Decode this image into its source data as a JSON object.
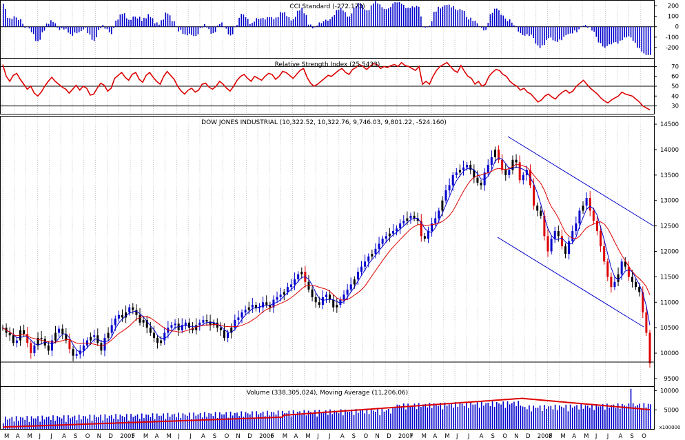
{
  "colors": {
    "up": "#0000cc",
    "down": "#dd0000",
    "neutral": "#000000",
    "ma_slow": "#dd0000",
    "ma_fast": "#0000cc",
    "rsi": "#dd0000",
    "cci": "#0000cc",
    "volume": "#0000cc",
    "grid": "#aaaaaa"
  },
  "chart_data": [
    {
      "type": "bar",
      "title": "CCI Standard (-272.173)",
      "ylim": [
        -300,
        250
      ],
      "yticks": [
        200,
        100,
        0,
        -100,
        -200
      ],
      "tick_labels": [
        "200",
        "100",
        "0",
        "-100",
        "-200"
      ],
      "grid": "vertical",
      "legend": "none"
    },
    {
      "type": "line",
      "title": "Relative Strength Index (25.5433)",
      "ylim": [
        22,
        78
      ],
      "yticks": [
        70,
        60,
        50,
        40,
        30
      ],
      "tick_labels": [
        "70",
        "60",
        "50",
        "40",
        "30"
      ],
      "reference_lines": [
        70,
        50,
        30
      ],
      "values": [
        72,
        60,
        55,
        61,
        63,
        57,
        52,
        47,
        50,
        43,
        40,
        44,
        50,
        55,
        59,
        55,
        52,
        49,
        47,
        43,
        47,
        51,
        46,
        50,
        48,
        41,
        42,
        48,
        53,
        51,
        45,
        48,
        58,
        61,
        64,
        59,
        56,
        62,
        64,
        57,
        54,
        61,
        64,
        59,
        55,
        52,
        60,
        65,
        61,
        57,
        50,
        45,
        42,
        46,
        48,
        44,
        46,
        52,
        53,
        49,
        47,
        50,
        55,
        52,
        48,
        45,
        50,
        56,
        60,
        62,
        58,
        55,
        60,
        58,
        56,
        60,
        63,
        62,
        57,
        60,
        65,
        64,
        61,
        58,
        62,
        66,
        68,
        59,
        53,
        50,
        52,
        55,
        58,
        61,
        60,
        63,
        66,
        68,
        64,
        62,
        67,
        69,
        72,
        70,
        67,
        70,
        73,
        72,
        68,
        70,
        69,
        71,
        72,
        70,
        74,
        71,
        70,
        68,
        66,
        70,
        52,
        55,
        52,
        60,
        66,
        70,
        72,
        74,
        70,
        66,
        64,
        71,
        65,
        60,
        58,
        52,
        55,
        50,
        52,
        60,
        64,
        67,
        66,
        62,
        60,
        55,
        52,
        50,
        46,
        48,
        44,
        42,
        38,
        34,
        36,
        40,
        42,
        39,
        37,
        41,
        44,
        46,
        43,
        45,
        50,
        53,
        56,
        52,
        48,
        45,
        42,
        38,
        35,
        33,
        36,
        38,
        40,
        44,
        42,
        41,
        40,
        37,
        34,
        30,
        28,
        26
      ],
      "grid": "vertical",
      "legend": "none"
    },
    {
      "type": "candlestick",
      "title": "DOW JONES INDUSTRIAL (10,322.52, 10,322.76, 9,746.03, 9,801.22, -524.160)",
      "ylim": [
        9350,
        14650
      ],
      "yticks": [
        14500,
        14000,
        13500,
        13000,
        12500,
        12000,
        11500,
        11000,
        10500,
        10000,
        9500
      ],
      "tick_labels": [
        "14500",
        "14000",
        "13500",
        "13000",
        "12500",
        "12000",
        "11500",
        "11000",
        "10500",
        "10000",
        "9500"
      ],
      "series": [
        {
          "name": "",
          "role": "price",
          "values": [
            10500,
            10400,
            10350,
            10200,
            10250,
            10450,
            10380,
            10200,
            10000,
            10150,
            10300,
            10280,
            10150,
            10050,
            10250,
            10400,
            10480,
            10380,
            10250,
            10080,
            9950,
            9980,
            10050,
            10150,
            10250,
            10320,
            10350,
            10200,
            10050,
            10300,
            10400,
            10550,
            10680,
            10750,
            10700,
            10800,
            10900,
            10850,
            10750,
            10600,
            10650,
            10500,
            10400,
            10300,
            10200,
            10250,
            10400,
            10500,
            10550,
            10580,
            10450,
            10550,
            10600,
            10500,
            10450,
            10550,
            10600,
            10650,
            10620,
            10550,
            10600,
            10500,
            10450,
            10300,
            10400,
            10500,
            10650,
            10700,
            10800,
            10850,
            10900,
            10950,
            10880,
            10900,
            11000,
            10950,
            10900,
            11050,
            11100,
            11150,
            11200,
            11300,
            11350,
            11450,
            11550,
            11600,
            11400,
            11250,
            11100,
            11000,
            10950,
            11100,
            11150,
            11050,
            10900,
            10950,
            11050,
            11150,
            11250,
            11350,
            11450,
            11600,
            11700,
            11800,
            11900,
            11950,
            12050,
            12150,
            12250,
            12300,
            12350,
            12400,
            12450,
            12550,
            12600,
            12650,
            12700,
            12650,
            12600,
            12300,
            12250,
            12400,
            12550,
            12650,
            12800,
            13000,
            13200,
            13300,
            13500,
            13550,
            13600,
            13650,
            13700,
            13600,
            13450,
            13350,
            13300,
            13550,
            13700,
            13850,
            14000,
            13800,
            13600,
            13500,
            13600,
            13800,
            13750,
            13400,
            13500,
            13600,
            13300,
            12900,
            12800,
            12700,
            12300,
            12000,
            12250,
            12400,
            12300,
            12100,
            11950,
            12200,
            12400,
            12550,
            12800,
            12900,
            13050,
            12800,
            12600,
            12400,
            12100,
            11800,
            11500,
            11300,
            11400,
            11550,
            11800,
            11700,
            11500,
            11400,
            11300,
            11200,
            10800,
            10400,
            9801
          ]
        },
        {
          "name": "",
          "role": "moving-average-fast",
          "values": []
        },
        {
          "name": "",
          "role": "moving-average-slow",
          "values": []
        }
      ],
      "annotations": [
        "descending channel upper line",
        "descending channel lower line",
        "support line near 9750"
      ],
      "grid": "vertical",
      "legend": "none"
    },
    {
      "type": "bar",
      "title": "Volume (338,305,024), Moving Average (11,206.06)",
      "ylim": [
        0,
        11000
      ],
      "yticks": [
        10000,
        5000
      ],
      "tick_labels": [
        "10000",
        "5000"
      ],
      "unit_label": "x100000",
      "grid": "vertical",
      "legend": "none"
    }
  ],
  "x_axis": {
    "labels": [
      "M",
      "A",
      "M",
      "J",
      "J",
      "A",
      "S",
      "O",
      "N",
      "D",
      "2005",
      "F",
      "M",
      "A",
      "M",
      "J",
      "J",
      "A",
      "S",
      "O",
      "N",
      "D",
      "2006",
      "F",
      "M",
      "A",
      "M",
      "J",
      "J",
      "A",
      "S",
      "O",
      "N",
      "D",
      "2007",
      "F",
      "M",
      "A",
      "M",
      "J",
      "J",
      "A",
      "S",
      "O",
      "N",
      "D",
      "2008",
      "F",
      "M",
      "A",
      "M",
      "J",
      "J",
      "A",
      "S",
      "O"
    ]
  }
}
